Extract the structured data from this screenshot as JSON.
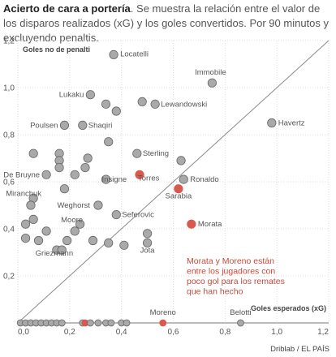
{
  "header": {
    "title_bold": "Acierto de cara a portería",
    "title_rest": ". Se muestra la relación entre el valor de los disparos realizados (xG) y los goles convertidos. Por 90 minutos y excluyendo penaltis."
  },
  "source": "Driblab / EL PAÍS",
  "chart_data": {
    "type": "scatter",
    "xlabel": "Goles esperados (xG)",
    "ylabel": "Goles no de penalti",
    "xlim": [
      0,
      1.2
    ],
    "ylim": [
      0,
      1.2
    ],
    "xticks": [
      "0,0",
      "0,2",
      "0,4",
      "0,6",
      "0,8",
      "1,0",
      "1,2"
    ],
    "yticks": [
      "0,0",
      "0,2",
      "0,4",
      "0,6",
      "0,8",
      "1,0",
      "1,2"
    ],
    "grid": true,
    "reference_line": "y = x",
    "colors": {
      "default": "#a9a9a9",
      "highlight": "#d9594c",
      "stroke": "#666666",
      "annotation": "#c64a3a"
    },
    "annotation": [
      "Morata y Moreno están",
      "entre los jugadores con",
      "poco gol para los remates",
      "que han hecho"
    ],
    "points": [
      {
        "x": 0.37,
        "y": 1.14,
        "label": "Locatelli"
      },
      {
        "x": 0.75,
        "y": 1.02,
        "label": "Immobile"
      },
      {
        "x": 0.28,
        "y": 0.97,
        "label": "Lukaku"
      },
      {
        "x": 0.34,
        "y": 0.93
      },
      {
        "x": 0.38,
        "y": 0.9
      },
      {
        "x": 0.48,
        "y": 0.94
      },
      {
        "x": 0.53,
        "y": 0.93,
        "label": "Lewandowski"
      },
      {
        "x": 0.98,
        "y": 0.85,
        "label": "Havertz"
      },
      {
        "x": 0.18,
        "y": 0.84,
        "label": "Poulsen"
      },
      {
        "x": 0.25,
        "y": 0.84,
        "label": "Shaqiri"
      },
      {
        "x": 0.35,
        "y": 0.77
      },
      {
        "x": 0.46,
        "y": 0.72,
        "label": "Sterling"
      },
      {
        "x": 0.06,
        "y": 0.72
      },
      {
        "x": 0.16,
        "y": 0.72
      },
      {
        "x": 0.16,
        "y": 0.69
      },
      {
        "x": 0.27,
        "y": 0.7
      },
      {
        "x": 0.63,
        "y": 0.69
      },
      {
        "x": 0.16,
        "y": 0.66
      },
      {
        "x": 0.26,
        "y": 0.66
      },
      {
        "x": 0.11,
        "y": 0.63,
        "label": "De Bruyne"
      },
      {
        "x": 0.22,
        "y": 0.63
      },
      {
        "x": 0.34,
        "y": 0.61,
        "label": "Insigne"
      },
      {
        "x": 0.47,
        "y": 0.63,
        "label": "Torres",
        "highlight": true
      },
      {
        "x": 0.64,
        "y": 0.61,
        "label": "Ronaldo"
      },
      {
        "x": 0.18,
        "y": 0.57
      },
      {
        "x": 0.62,
        "y": 0.57,
        "label": "Sarabia",
        "highlight": true
      },
      {
        "x": 0.06,
        "y": 0.53,
        "label": "Miranchuk"
      },
      {
        "x": 0.31,
        "y": 0.5,
        "label": "Weghorst"
      },
      {
        "x": 0.05,
        "y": 0.5
      },
      {
        "x": 0.38,
        "y": 0.46,
        "label": "Seferovic"
      },
      {
        "x": 0.06,
        "y": 0.44
      },
      {
        "x": 0.03,
        "y": 0.42
      },
      {
        "x": 0.24,
        "y": 0.42,
        "label": "Moore"
      },
      {
        "x": 0.67,
        "y": 0.42,
        "label": "Morata",
        "highlight": true
      },
      {
        "x": 0.11,
        "y": 0.39
      },
      {
        "x": 0.22,
        "y": 0.39
      },
      {
        "x": 0.03,
        "y": 0.36
      },
      {
        "x": 0.08,
        "y": 0.35
      },
      {
        "x": 0.19,
        "y": 0.35
      },
      {
        "x": 0.29,
        "y": 0.35
      },
      {
        "x": 0.35,
        "y": 0.34
      },
      {
        "x": 0.41,
        "y": 0.33
      },
      {
        "x": 0.5,
        "y": 0.34,
        "label": "Jota"
      },
      {
        "x": 0.5,
        "y": 0.38
      },
      {
        "x": 0.15,
        "y": 0.31,
        "label": "Griezmann"
      },
      {
        "x": 0.17,
        "y": 0.31
      },
      {
        "x": 0.56,
        "y": 0.0,
        "label": "Moreno",
        "highlight": true
      },
      {
        "x": 0.86,
        "y": 0.0,
        "label": "Belotti"
      },
      {
        "x": 0.01,
        "y": 0.0
      },
      {
        "x": 0.03,
        "y": 0.0
      },
      {
        "x": 0.05,
        "y": 0.0
      },
      {
        "x": 0.07,
        "y": 0.0
      },
      {
        "x": 0.09,
        "y": 0.0
      },
      {
        "x": 0.11,
        "y": 0.0
      },
      {
        "x": 0.13,
        "y": 0.0
      },
      {
        "x": 0.15,
        "y": 0.0
      },
      {
        "x": 0.17,
        "y": 0.0
      },
      {
        "x": 0.25,
        "y": 0.0
      },
      {
        "x": 0.26,
        "y": 0.0,
        "highlight": true
      },
      {
        "x": 0.28,
        "y": 0.0
      },
      {
        "x": 0.31,
        "y": 0.0
      },
      {
        "x": 0.34,
        "y": 0.0
      },
      {
        "x": 0.36,
        "y": 0.0
      },
      {
        "x": 0.4,
        "y": 0.0
      },
      {
        "x": 0.42,
        "y": 0.0
      }
    ]
  }
}
